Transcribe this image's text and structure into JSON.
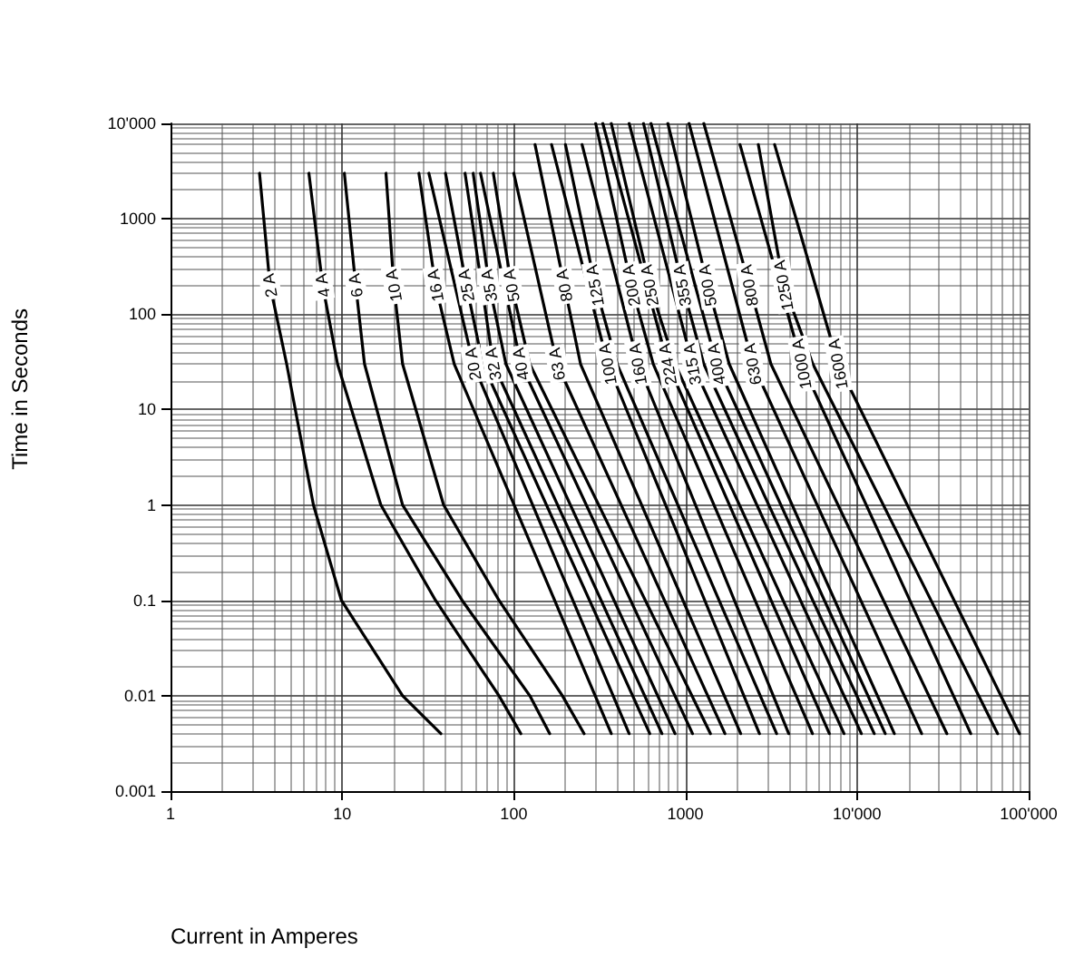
{
  "chart_data": {
    "type": "line",
    "xlabel": "Current in Amperes",
    "ylabel": "Time in Seconds",
    "log": "xy",
    "grid": true,
    "line_style": "solid",
    "xlim": [
      1,
      100000
    ],
    "xticks": [
      1,
      10,
      100,
      1000,
      {
        "value": 10000,
        "label": "10'000"
      },
      {
        "value": 100000,
        "label": "100'000"
      }
    ],
    "ylim": [
      0.001,
      10000
    ],
    "yticks": [
      0.001,
      0.01,
      0.1,
      1,
      10,
      100,
      1000,
      {
        "value": 10000,
        "label": "10'000"
      }
    ],
    "series": [
      {
        "name": "2 A",
        "color": "#000000",
        "x": [
          3.3,
          3.8,
          4.75,
          6.8,
          9.9,
          22.5,
          37.6
        ],
        "values": [
          3000,
          200,
          30,
          1,
          0.1,
          0.01,
          0.004
        ]
      },
      {
        "name": "4 A",
        "color": "#000000",
        "x": [
          6.4,
          7.7,
          9.4,
          16.8,
          35,
          82,
          110
        ],
        "values": [
          3000,
          200,
          30,
          1,
          0.1,
          0.01,
          0.004
        ]
      },
      {
        "name": "6 A",
        "color": "#000000",
        "x": [
          10.3,
          12,
          13.5,
          22.5,
          50,
          124,
          162
        ],
        "values": [
          3000,
          200,
          30,
          1,
          0.1,
          0.01,
          0.004
        ]
      },
      {
        "name": "10 A",
        "color": "#000000",
        "x": [
          18,
          20,
          22.5,
          39,
          82,
          192,
          257
        ],
        "values": [
          3000,
          200,
          30,
          1,
          0.1,
          0.01,
          0.004
        ]
      },
      {
        "name": "16 A",
        "color": "#000000",
        "x": [
          28,
          35,
          45,
          370
        ],
        "values": [
          3000,
          200,
          30,
          0.004
        ]
      },
      {
        "name": "20 A",
        "color": "#000000",
        "x": [
          32,
          58,
          470
        ],
        "values": [
          3000,
          30,
          0.004
        ]
      },
      {
        "name": "25 A",
        "color": "#000000",
        "x": [
          40,
          53,
          66,
          620
        ],
        "values": [
          3000,
          200,
          30,
          0.004
        ]
      },
      {
        "name": "32 A",
        "color": "#000000",
        "x": [
          52,
          76,
          730
        ],
        "values": [
          3000,
          30,
          0.004
        ]
      },
      {
        "name": "35 A",
        "color": "#000000",
        "x": [
          58,
          72,
          90,
          870
        ],
        "values": [
          3000,
          200,
          30,
          0.004
        ]
      },
      {
        "name": "40 A",
        "color": "#000000",
        "x": [
          64,
          110,
          1100
        ],
        "values": [
          3000,
          30,
          0.004
        ]
      },
      {
        "name": "50 A",
        "color": "#000000",
        "x": [
          76,
          97,
          124,
          1400
        ],
        "values": [
          3000,
          200,
          30,
          0.004
        ]
      },
      {
        "name": "63 A",
        "color": "#000000",
        "x": [
          100,
          179,
          1700
        ],
        "values": [
          3000,
          30,
          0.004
        ]
      },
      {
        "name": "80 A",
        "color": "#000000",
        "x": [
          133,
          197,
          245,
          2100
        ],
        "values": [
          6000,
          200,
          30,
          0.004
        ]
      },
      {
        "name": "100 A",
        "color": "#000000",
        "x": [
          166,
          353,
          2700
        ],
        "values": [
          6000,
          30,
          0.004
        ]
      },
      {
        "name": "125 A",
        "color": "#000000",
        "x": [
          200,
          298,
          400,
          3400
        ],
        "values": [
          6000,
          200,
          30,
          0.004
        ]
      },
      {
        "name": "160 A",
        "color": "#000000",
        "x": [
          250,
          530,
          4000
        ],
        "values": [
          6000,
          30,
          0.004
        ]
      },
      {
        "name": "200 A",
        "color": "#000000",
        "x": [
          300,
          484,
          650,
          5500
        ],
        "values": [
          10000,
          200,
          30,
          0.004
        ]
      },
      {
        "name": "224 A",
        "color": "#000000",
        "x": [
          330,
          790,
          6900
        ],
        "values": [
          10000,
          30,
          0.004
        ]
      },
      {
        "name": "250 A",
        "color": "#000000",
        "x": [
          370,
          620,
          870,
          8400
        ],
        "values": [
          10000,
          200,
          30,
          0.004
        ]
      },
      {
        "name": "315 A",
        "color": "#000000",
        "x": [
          470,
          1100,
          10600
        ],
        "values": [
          10000,
          30,
          0.004
        ]
      },
      {
        "name": "355 A",
        "color": "#000000",
        "x": [
          570,
          960,
          1280,
          12600
        ],
        "values": [
          10000,
          200,
          30,
          0.004
        ]
      },
      {
        "name": "400 A",
        "color": "#000000",
        "x": [
          630,
          1520,
          14600
        ],
        "values": [
          10000,
          30,
          0.004
        ]
      },
      {
        "name": "500 A",
        "color": "#000000",
        "x": [
          790,
          1350,
          1800,
          16500
        ],
        "values": [
          10000,
          200,
          30,
          0.004
        ]
      },
      {
        "name": "630 A",
        "color": "#000000",
        "x": [
          1050,
          2470,
          23800
        ],
        "values": [
          10000,
          30,
          0.004
        ]
      },
      {
        "name": "800 A",
        "color": "#000000",
        "x": [
          1280,
          2360,
          3150,
          33400
        ],
        "values": [
          10000,
          200,
          30,
          0.004
        ]
      },
      {
        "name": "1000 A",
        "color": "#000000",
        "x": [
          2080,
          4770,
          46000
        ],
        "values": [
          6000,
          30,
          0.004
        ]
      },
      {
        "name": "1250 A",
        "color": "#000000",
        "x": [
          2660,
          3740,
          5530,
          66000
        ],
        "values": [
          6000,
          200,
          30,
          0.004
        ]
      },
      {
        "name": "1600 A",
        "color": "#000000",
        "x": [
          3310,
          7760,
          88500
        ],
        "values": [
          6000,
          30,
          0.004
        ]
      }
    ]
  }
}
